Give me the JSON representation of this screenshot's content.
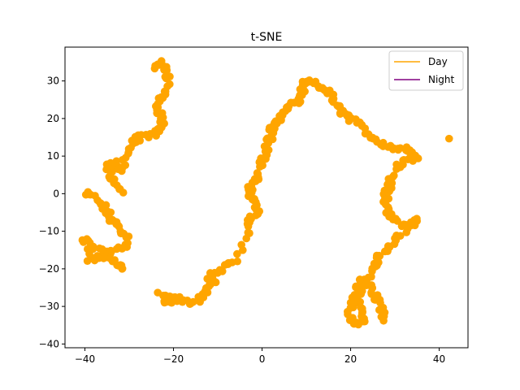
{
  "chart_data": {
    "type": "scatter",
    "title": "t-SNE",
    "xlabel": "",
    "ylabel": "",
    "xlim": [
      -44.5,
      46.5
    ],
    "ylim": [
      -41,
      39
    ],
    "xticks": [
      -40,
      -20,
      0,
      20,
      40
    ],
    "yticks": [
      -40,
      -30,
      -20,
      -10,
      0,
      10,
      20,
      30
    ],
    "xtick_labels": [
      "−40",
      "−20",
      "0",
      "20",
      "40"
    ],
    "ytick_labels": [
      "−40",
      "−30",
      "−20",
      "−10",
      "0",
      "10",
      "20",
      "30"
    ],
    "grid": false,
    "legend": {
      "placement": "top-right",
      "entries": [
        {
          "label": "Day",
          "color": "#ffa500"
        },
        {
          "label": "Night",
          "color": "#800080"
        }
      ]
    },
    "series": [
      {
        "name": "Day",
        "color": "#ffa500",
        "marker_size": 6,
        "path_x": [
          -40,
          -38,
          -36,
          -35,
          -34,
          -33,
          -32,
          -30,
          -31,
          -33,
          -35,
          -37,
          -39,
          -40,
          -38,
          -36,
          -34,
          -32,
          -31,
          -32,
          -33,
          -34,
          -35,
          -33,
          -32,
          -31,
          -30,
          -29,
          -28,
          -26,
          -24,
          -23,
          -22.5,
          -23,
          -23.5,
          -23,
          -22,
          -21,
          -22,
          -23,
          -24,
          -23,
          -22,
          -21,
          -22,
          -20,
          -18,
          -16,
          -14,
          -13,
          -12,
          -11,
          -12,
          -10,
          -8,
          -6,
          -4,
          -3,
          -2,
          -1,
          -2,
          -3,
          -3,
          -2,
          -1,
          0,
          0,
          1,
          1,
          2,
          2,
          3,
          4,
          5,
          6,
          7,
          8,
          9,
          9,
          10,
          12,
          14,
          15,
          16,
          17,
          18,
          19,
          20,
          22,
          24,
          26,
          28,
          30,
          32,
          34,
          35,
          33,
          31,
          30,
          29,
          29,
          28,
          28,
          28,
          29,
          30,
          32,
          34,
          35,
          32,
          30,
          29,
          27,
          26,
          25,
          24,
          22,
          21,
          21,
          22,
          23,
          23,
          21,
          20,
          20,
          21,
          22,
          24,
          25,
          26,
          27,
          27.5,
          42
        ],
        "path_y": [
          0,
          -1,
          -3,
          -5,
          -7,
          -8,
          -10,
          -12,
          -14,
          -15,
          -16,
          -17,
          -18,
          -12,
          -14,
          -16,
          -18,
          -19,
          -20,
          0,
          3,
          5,
          7,
          8,
          6,
          9,
          12,
          14,
          15,
          15,
          16,
          17,
          19,
          21,
          23,
          25,
          27,
          30,
          33,
          35,
          34,
          -27,
          -28,
          -29,
          -28,
          -28,
          -28,
          -29,
          -28,
          -27,
          -25,
          -23,
          -22,
          -21,
          -19,
          -18,
          -12,
          -8,
          -6,
          -4,
          -2,
          0,
          1,
          3,
          5,
          7,
          9,
          11,
          13,
          15,
          17,
          19,
          20,
          22,
          23,
          24,
          25,
          27,
          29,
          30,
          29,
          28,
          27,
          25,
          23,
          22,
          21,
          20,
          18,
          16,
          14,
          13,
          12,
          12,
          11,
          10,
          9,
          8,
          6,
          4,
          2,
          0,
          -2,
          -4,
          -6,
          -7,
          -8,
          -8,
          -7,
          -10,
          -13,
          -14,
          -16,
          -18,
          -20,
          -22,
          -23,
          -25,
          -28,
          -30,
          -32,
          -34,
          -35,
          -33,
          -30,
          -28,
          -26,
          -24,
          -26,
          -28,
          -31,
          -34,
          15
        ]
      }
    ]
  }
}
